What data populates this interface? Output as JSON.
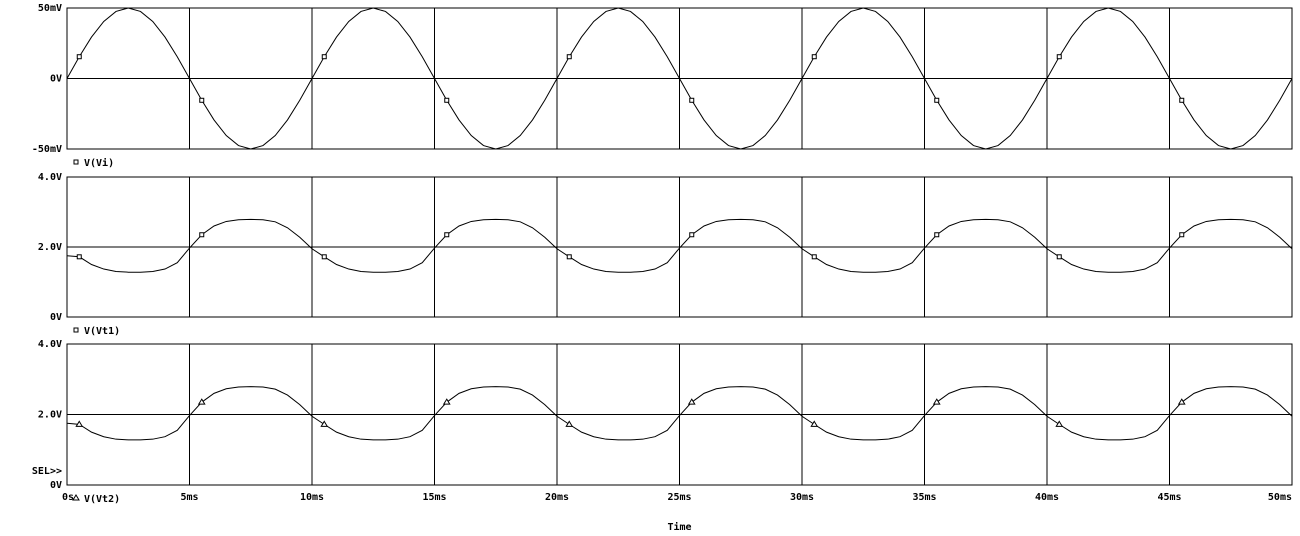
{
  "chart_data": [
    {
      "type": "line",
      "ylim": [
        -50,
        50
      ],
      "yticks": [
        {
          "value": -50,
          "label": "-50mV"
        },
        {
          "value": 0,
          "label": "0V"
        },
        {
          "value": 50,
          "label": "50mV"
        }
      ],
      "xlim": [
        0,
        50
      ],
      "xticks": [
        0,
        5,
        10,
        15,
        20,
        25,
        30,
        35,
        40,
        45,
        50
      ],
      "grid": true,
      "x": [
        0,
        0.5,
        1,
        1.5,
        2,
        2.5,
        3,
        3.5,
        4,
        4.5,
        5,
        5.5,
        6,
        6.5,
        7,
        7.5,
        8,
        8.5,
        9,
        9.5,
        10,
        10.5,
        11,
        11.5,
        12,
        12.5,
        13,
        13.5,
        14,
        14.5,
        15,
        15.5,
        16,
        16.5,
        17,
        17.5,
        18,
        18.5,
        19,
        19.5,
        20,
        20.5,
        21,
        21.5,
        22,
        22.5,
        23,
        23.5,
        24,
        24.5,
        25,
        25.5,
        26,
        26.5,
        27,
        27.5,
        28,
        28.5,
        29,
        29.5,
        30,
        30.5,
        31,
        31.5,
        32,
        32.5,
        33,
        33.5,
        34,
        34.5,
        35,
        35.5,
        36,
        36.5,
        37,
        37.5,
        38,
        38.5,
        39,
        39.5,
        40,
        40.5,
        41,
        41.5,
        42,
        42.5,
        43,
        43.5,
        44,
        44.5,
        45,
        45.5,
        46,
        46.5,
        47,
        47.5,
        48,
        48.5,
        49,
        49.5,
        50
      ],
      "series": [
        {
          "name": "V(Vi)",
          "color": "#000000",
          "marker": "square",
          "values": [
            0,
            15.45,
            29.39,
            40.45,
            47.55,
            50,
            47.55,
            40.45,
            29.39,
            15.45,
            0,
            -15.45,
            -29.39,
            -40.45,
            -47.55,
            -50,
            -47.55,
            -40.45,
            -29.39,
            -15.45,
            0,
            15.45,
            29.39,
            40.45,
            47.55,
            50,
            47.55,
            40.45,
            29.39,
            15.45,
            0,
            -15.45,
            -29.39,
            -40.45,
            -47.55,
            -50,
            -47.55,
            -40.45,
            -29.39,
            -15.45,
            0,
            15.45,
            29.39,
            40.45,
            47.55,
            50,
            47.55,
            40.45,
            29.39,
            15.45,
            0,
            -15.45,
            -29.39,
            -40.45,
            -47.55,
            -50,
            -47.55,
            -40.45,
            -29.39,
            -15.45,
            0,
            15.45,
            29.39,
            40.45,
            47.55,
            50,
            47.55,
            40.45,
            29.39,
            15.45,
            0,
            -15.45,
            -29.39,
            -40.45,
            -47.55,
            -50,
            -47.55,
            -40.45,
            -29.39,
            -15.45,
            0,
            15.45,
            29.39,
            40.45,
            47.55,
            50,
            47.55,
            40.45,
            29.39,
            15.45,
            0,
            -15.45,
            -29.39,
            -40.45,
            -47.55,
            -50,
            -47.55,
            -40.45,
            -29.39,
            -15.45,
            0
          ]
        }
      ]
    },
    {
      "type": "line",
      "ylim": [
        0,
        4
      ],
      "yticks": [
        {
          "value": 0,
          "label": "0V"
        },
        {
          "value": 2,
          "label": "2.0V"
        },
        {
          "value": 4,
          "label": "4.0V"
        }
      ],
      "xlim": [
        0,
        50
      ],
      "xticks": [
        0,
        5,
        10,
        15,
        20,
        25,
        30,
        35,
        40,
        45,
        50
      ],
      "grid": true,
      "x": [
        0,
        0.5,
        1,
        1.5,
        2,
        2.5,
        3,
        3.5,
        4,
        4.5,
        5,
        5.5,
        6,
        6.5,
        7,
        7.5,
        8,
        8.5,
        9,
        9.5,
        10,
        10.5,
        11,
        11.5,
        12,
        12.5,
        13,
        13.5,
        14,
        14.5,
        15,
        15.5,
        16,
        16.5,
        17,
        17.5,
        18,
        18.5,
        19,
        19.5,
        20,
        20.5,
        21,
        21.5,
        22,
        22.5,
        23,
        23.5,
        24,
        24.5,
        25,
        25.5,
        26,
        26.5,
        27,
        27.5,
        28,
        28.5,
        29,
        29.5,
        30,
        30.5,
        31,
        31.5,
        32,
        32.5,
        33,
        33.5,
        34,
        34.5,
        35,
        35.5,
        36,
        36.5,
        37,
        37.5,
        38,
        38.5,
        39,
        39.5,
        40,
        40.5,
        41,
        41.5,
        42,
        42.5,
        43,
        43.5,
        44,
        44.5,
        45,
        45.5,
        46,
        46.5,
        47,
        47.5,
        48,
        48.5,
        49,
        49.5,
        50
      ],
      "series": [
        {
          "name": "V(Vt1)",
          "color": "#000000",
          "marker": "square",
          "values": [
            1.75,
            1.72,
            1.5,
            1.37,
            1.3,
            1.28,
            1.28,
            1.3,
            1.37,
            1.55,
            1.97,
            2.35,
            2.6,
            2.73,
            2.78,
            2.79,
            2.78,
            2.72,
            2.55,
            2.28,
            1.95,
            1.72,
            1.5,
            1.37,
            1.3,
            1.28,
            1.28,
            1.3,
            1.37,
            1.55,
            1.97,
            2.35,
            2.6,
            2.73,
            2.78,
            2.79,
            2.78,
            2.72,
            2.55,
            2.28,
            1.95,
            1.72,
            1.5,
            1.37,
            1.3,
            1.28,
            1.28,
            1.3,
            1.37,
            1.55,
            1.97,
            2.35,
            2.6,
            2.73,
            2.78,
            2.79,
            2.78,
            2.72,
            2.55,
            2.28,
            1.95,
            1.72,
            1.5,
            1.37,
            1.3,
            1.28,
            1.28,
            1.3,
            1.37,
            1.55,
            1.97,
            2.35,
            2.6,
            2.73,
            2.78,
            2.79,
            2.78,
            2.72,
            2.55,
            2.28,
            1.95,
            1.72,
            1.5,
            1.37,
            1.3,
            1.28,
            1.28,
            1.3,
            1.37,
            1.55,
            1.97,
            2.35,
            2.6,
            2.73,
            2.78,
            2.79,
            2.78,
            2.72,
            2.55,
            2.28,
            1.95
          ]
        }
      ]
    },
    {
      "type": "line",
      "ylim": [
        0,
        4
      ],
      "yticks": [
        {
          "value": 0,
          "label": "0V"
        },
        {
          "value": 2,
          "label": "2.0V"
        },
        {
          "value": 4,
          "label": "4.0V"
        }
      ],
      "xlim": [
        0,
        50
      ],
      "xticks": [
        {
          "value": 0,
          "label": "0s"
        },
        {
          "value": 5,
          "label": "5ms"
        },
        {
          "value": 10,
          "label": "10ms"
        },
        {
          "value": 15,
          "label": "15ms"
        },
        {
          "value": 20,
          "label": "20ms"
        },
        {
          "value": 25,
          "label": "25ms"
        },
        {
          "value": 30,
          "label": "30ms"
        },
        {
          "value": 35,
          "label": "35ms"
        },
        {
          "value": 40,
          "label": "40ms"
        },
        {
          "value": 45,
          "label": "45ms"
        },
        {
          "value": 50,
          "label": "50ms"
        }
      ],
      "grid": true,
      "xlabel": "Time",
      "annotation": "SEL>>",
      "x": [
        0,
        0.5,
        1,
        1.5,
        2,
        2.5,
        3,
        3.5,
        4,
        4.5,
        5,
        5.5,
        6,
        6.5,
        7,
        7.5,
        8,
        8.5,
        9,
        9.5,
        10,
        10.5,
        11,
        11.5,
        12,
        12.5,
        13,
        13.5,
        14,
        14.5,
        15,
        15.5,
        16,
        16.5,
        17,
        17.5,
        18,
        18.5,
        19,
        19.5,
        20,
        20.5,
        21,
        21.5,
        22,
        22.5,
        23,
        23.5,
        24,
        24.5,
        25,
        25.5,
        26,
        26.5,
        27,
        27.5,
        28,
        28.5,
        29,
        29.5,
        30,
        30.5,
        31,
        31.5,
        32,
        32.5,
        33,
        33.5,
        34,
        34.5,
        35,
        35.5,
        36,
        36.5,
        37,
        37.5,
        38,
        38.5,
        39,
        39.5,
        40,
        40.5,
        41,
        41.5,
        42,
        42.5,
        43,
        43.5,
        44,
        44.5,
        45,
        45.5,
        46,
        46.5,
        47,
        47.5,
        48,
        48.5,
        49,
        49.5,
        50
      ],
      "series": [
        {
          "name": "V(Vt2)",
          "color": "#000000",
          "marker": "triangle",
          "values": [
            1.75,
            1.72,
            1.5,
            1.37,
            1.3,
            1.28,
            1.28,
            1.3,
            1.37,
            1.55,
            1.97,
            2.35,
            2.6,
            2.73,
            2.78,
            2.79,
            2.78,
            2.72,
            2.55,
            2.28,
            1.95,
            1.72,
            1.5,
            1.37,
            1.3,
            1.28,
            1.28,
            1.3,
            1.37,
            1.55,
            1.97,
            2.35,
            2.6,
            2.73,
            2.78,
            2.79,
            2.78,
            2.72,
            2.55,
            2.28,
            1.95,
            1.72,
            1.5,
            1.37,
            1.3,
            1.28,
            1.28,
            1.3,
            1.37,
            1.55,
            1.97,
            2.35,
            2.6,
            2.73,
            2.78,
            2.79,
            2.78,
            2.72,
            2.55,
            2.28,
            1.95,
            1.72,
            1.5,
            1.37,
            1.3,
            1.28,
            1.28,
            1.3,
            1.37,
            1.55,
            1.97,
            2.35,
            2.6,
            2.73,
            2.78,
            2.79,
            2.78,
            2.72,
            2.55,
            2.28,
            1.95,
            1.72,
            1.5,
            1.37,
            1.3,
            1.28,
            1.28,
            1.3,
            1.37,
            1.55,
            1.97,
            2.35,
            2.6,
            2.73,
            2.78,
            2.79,
            2.78,
            2.72,
            2.55,
            2.28,
            1.95
          ]
        }
      ]
    }
  ]
}
